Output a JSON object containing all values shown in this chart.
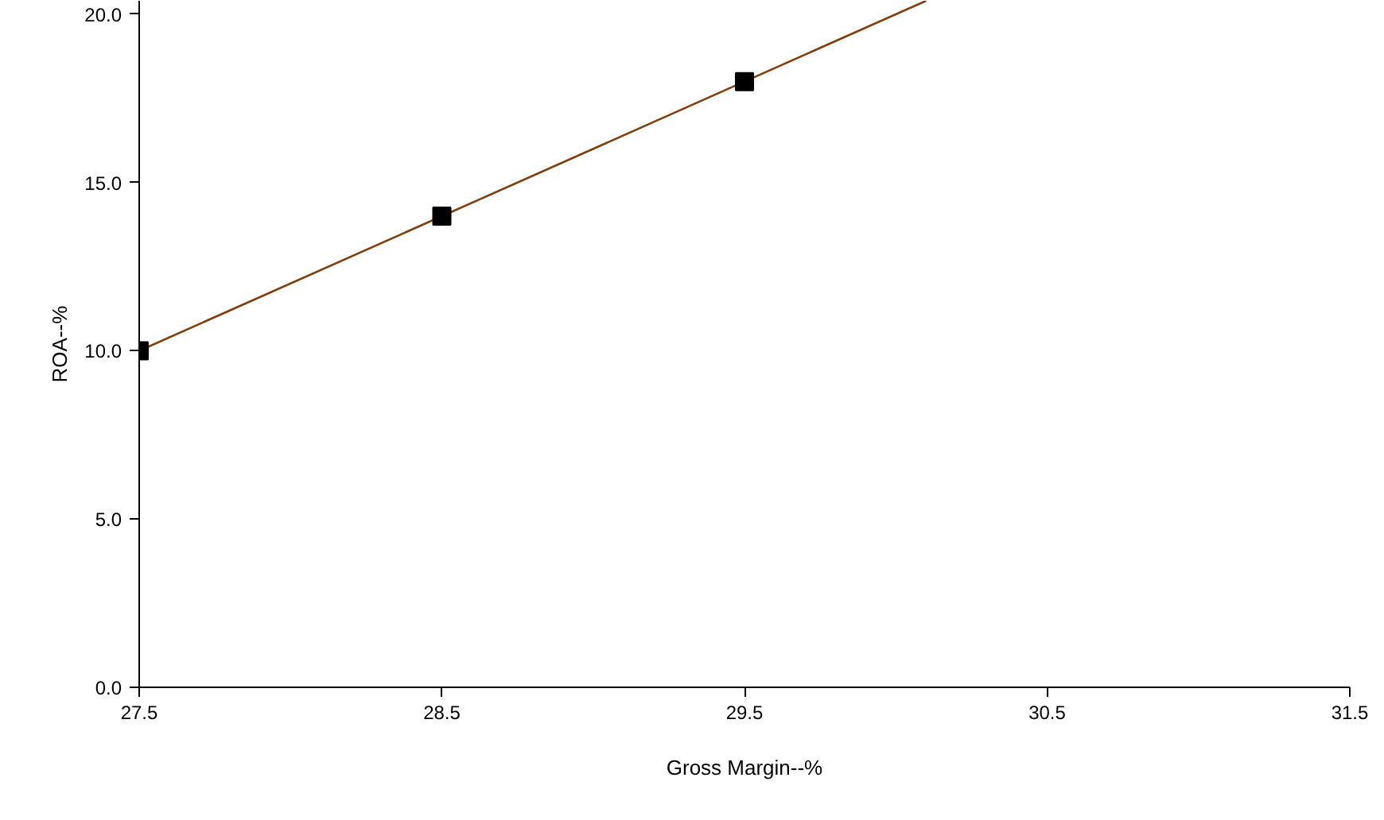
{
  "chart_data": {
    "type": "line",
    "xlabel": "Gross Margin--%",
    "ylabel": "ROA--%",
    "xlim": [
      27.5,
      31.5
    ],
    "ylim": [
      0,
      20.4
    ],
    "xticks": [
      27.5,
      28.5,
      29.5,
      30.5,
      31.5
    ],
    "yticks": [
      {
        "value": 0,
        "label": "0.0"
      },
      {
        "value": 5,
        "label": "5.0"
      },
      {
        "value": 10,
        "label": "10.0"
      },
      {
        "value": 15,
        "label": "15.0"
      },
      {
        "value": 20,
        "label": "20.0"
      }
    ],
    "grid": false,
    "series": [
      {
        "color": "#7f3f10",
        "marker": "none",
        "line_style": "solid",
        "x": [
          27.5,
          28.5,
          29.5,
          30.1
        ],
        "values": [
          10,
          14,
          18,
          20.4
        ]
      },
      {
        "type": "scatter",
        "color": "#000000",
        "marker": "square",
        "x": [
          27.5,
          28.5,
          29.5
        ],
        "values": [
          10,
          14,
          18
        ]
      }
    ]
  }
}
